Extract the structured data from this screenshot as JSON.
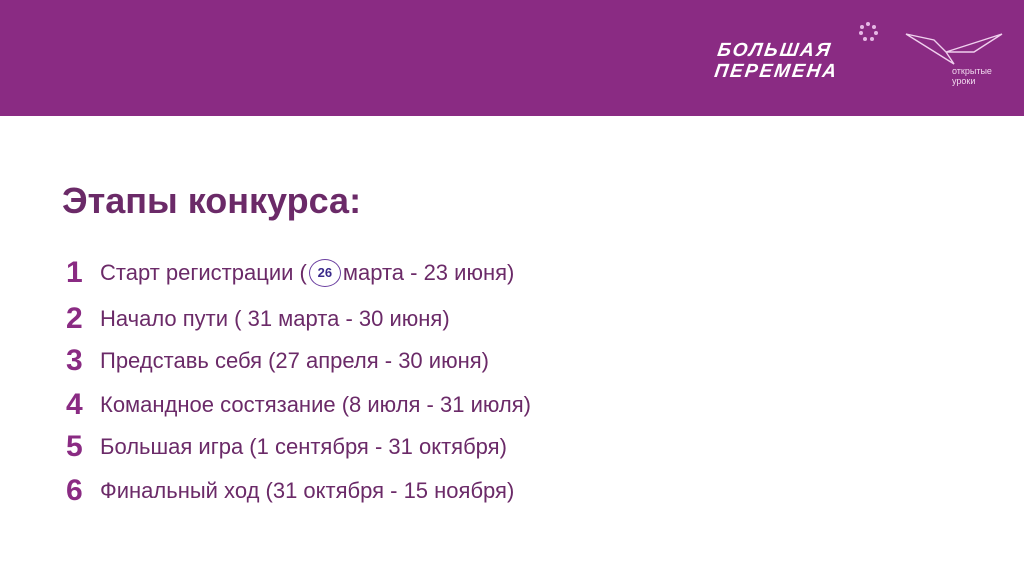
{
  "header": {
    "logo_main_line1": "БОЛЬШАЯ",
    "logo_main_line2": "ПЕРЕМЕНА",
    "logo_secondary_line1": "открытые",
    "logo_secondary_line2": "уроки",
    "color": "#8a2b83"
  },
  "title": "Этапы конкурса:",
  "items": [
    {
      "num": "1",
      "before": "Старт регистрации (",
      "badge": "26",
      "after": "марта - 23 июня)"
    },
    {
      "num": "2",
      "text": "Начало пути ( 31 марта - 30 июня)"
    },
    {
      "num": "3",
      "text": "Представь себя (27 апреля - 30 июня)"
    },
    {
      "num": "4",
      "text": "Командное состязание (8 июля - 31 июля)"
    },
    {
      "num": "5",
      "text": "Большая игра (1 сентября - 31 октября)"
    },
    {
      "num": "6",
      "text": "Финальный ход (31 октября - 15 ноября)"
    }
  ]
}
